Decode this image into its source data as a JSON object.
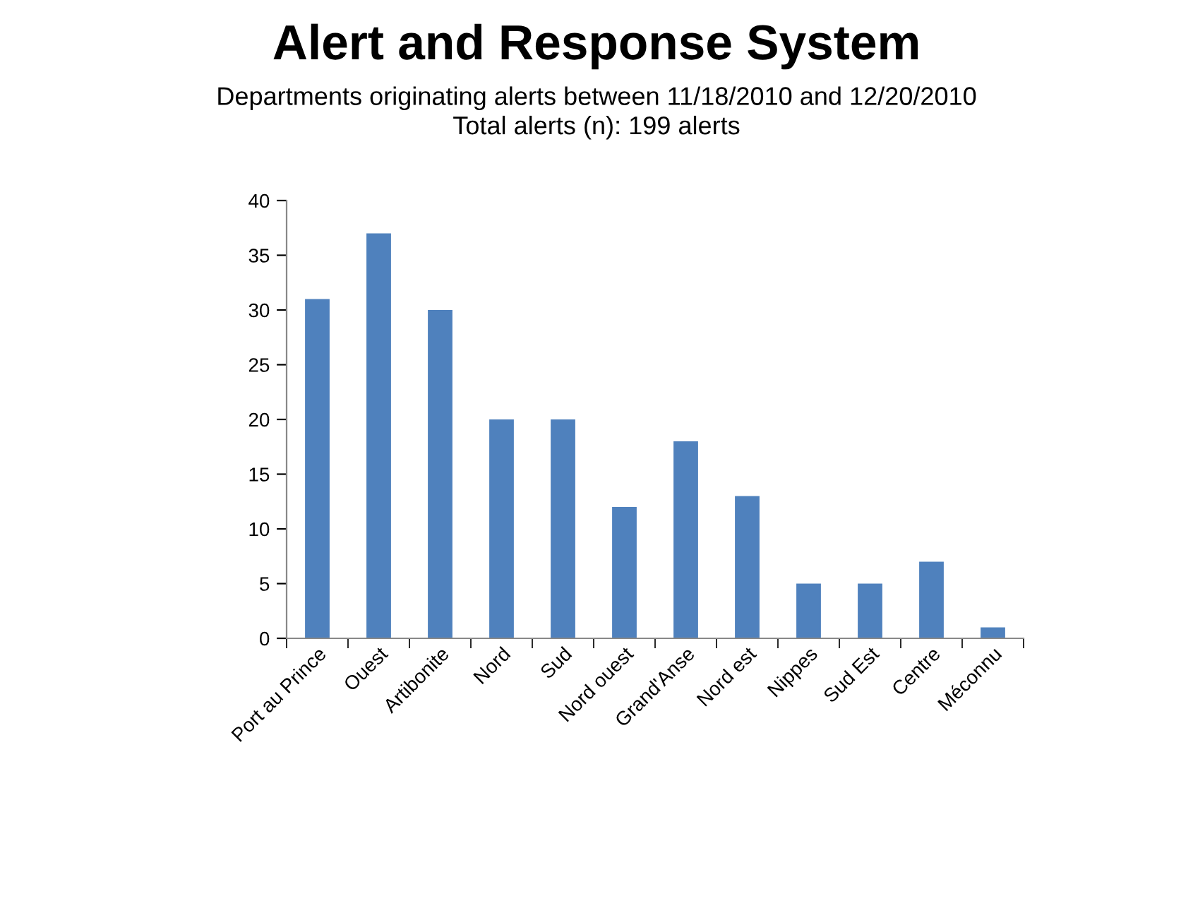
{
  "chart_data": {
    "type": "bar",
    "title": "Alert and Response System",
    "subtitle": "Departments originating alerts between 11/18/2010 and 12/20/2010\nTotal alerts (n): 199 alerts",
    "categories": [
      "Port au Prince",
      "Ouest",
      "Artibonite",
      "Nord",
      "Sud",
      "Nord ouest",
      "Grand'Anse",
      "Nord est",
      "Nippes",
      "Sud Est",
      "Centre",
      "Méconnu"
    ],
    "values": [
      31,
      37,
      30,
      20,
      20,
      12,
      18,
      13,
      5,
      5,
      7,
      1
    ],
    "color": "#4f81bd",
    "ylim": [
      0,
      40
    ],
    "yticks": [
      0,
      5,
      10,
      15,
      20,
      25,
      30,
      35,
      40
    ],
    "grid": false,
    "legend": false
  }
}
